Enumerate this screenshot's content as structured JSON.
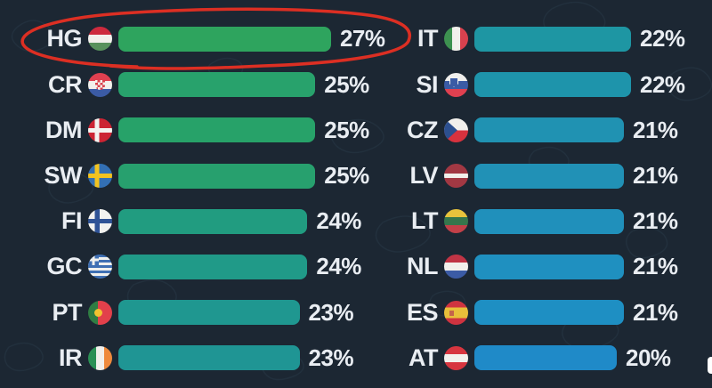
{
  "background": {
    "color": "#1c2733",
    "pattern": "topographic-contour-squiggles",
    "pattern_color": "#2c3f4e"
  },
  "text_color": "#e9edf2",
  "annotation": {
    "type": "hand-drawn-red-circle",
    "color": "#dc2f23",
    "highlights": "HG 27% row"
  },
  "edge_artifact": {
    "note": "partial white element cropped at right edge",
    "color": "#ffffff"
  },
  "chart_data": {
    "type": "bar",
    "orientation": "horizontal",
    "unit": "%",
    "value_range": [
      20,
      27
    ],
    "color_scale": "green (highest) to blue (lowest)",
    "columns": [
      {
        "name": "left",
        "rows": [
          {
            "code": "HG",
            "flag": "hungary",
            "value": 27,
            "label": "27%",
            "color": "#2ea45e",
            "highlighted": true
          },
          {
            "code": "CR",
            "flag": "croatia",
            "value": 25,
            "label": "25%",
            "color": "#28a26c",
            "highlighted": false
          },
          {
            "code": "DM",
            "flag": "denmark",
            "value": 25,
            "label": "25%",
            "color": "#27a269",
            "highlighted": false
          },
          {
            "code": "SW",
            "flag": "sweden",
            "value": 25,
            "label": "25%",
            "color": "#27a06e",
            "highlighted": false
          },
          {
            "code": "FI",
            "flag": "finland",
            "value": 24,
            "label": "24%",
            "color": "#219c80",
            "highlighted": false
          },
          {
            "code": "GC",
            "flag": "greece",
            "value": 24,
            "label": "24%",
            "color": "#209a88",
            "highlighted": false
          },
          {
            "code": "PT",
            "flag": "portugal",
            "value": 23,
            "label": "23%",
            "color": "#1f9790",
            "highlighted": false
          },
          {
            "code": "IR",
            "flag": "ireland",
            "value": 23,
            "label": "23%",
            "color": "#1f9594",
            "highlighted": false
          }
        ]
      },
      {
        "name": "right",
        "rows": [
          {
            "code": "IT",
            "flag": "italy",
            "value": 22,
            "label": "22%",
            "color": "#1e96a3",
            "highlighted": false
          },
          {
            "code": "SI",
            "flag": "slovenia",
            "value": 22,
            "label": "22%",
            "color": "#1e94ab",
            "highlighted": false
          },
          {
            "code": "CZ",
            "flag": "czechia",
            "value": 21,
            "label": "21%",
            "color": "#2092b2",
            "highlighted": false
          },
          {
            "code": "LV",
            "flag": "latvia",
            "value": 21,
            "label": "21%",
            "color": "#2191b6",
            "highlighted": false
          },
          {
            "code": "LT",
            "flag": "lithuania",
            "value": 21,
            "label": "21%",
            "color": "#2090bb",
            "highlighted": false
          },
          {
            "code": "NL",
            "flag": "netherlands",
            "value": 21,
            "label": "21%",
            "color": "#1f90c0",
            "highlighted": false
          },
          {
            "code": "ES",
            "flag": "spain",
            "value": 21,
            "label": "21%",
            "color": "#1e8fc3",
            "highlighted": false
          },
          {
            "code": "AT",
            "flag": "austria",
            "value": 20,
            "label": "20%",
            "color": "#1f8ac8",
            "highlighted": false
          }
        ]
      }
    ]
  }
}
